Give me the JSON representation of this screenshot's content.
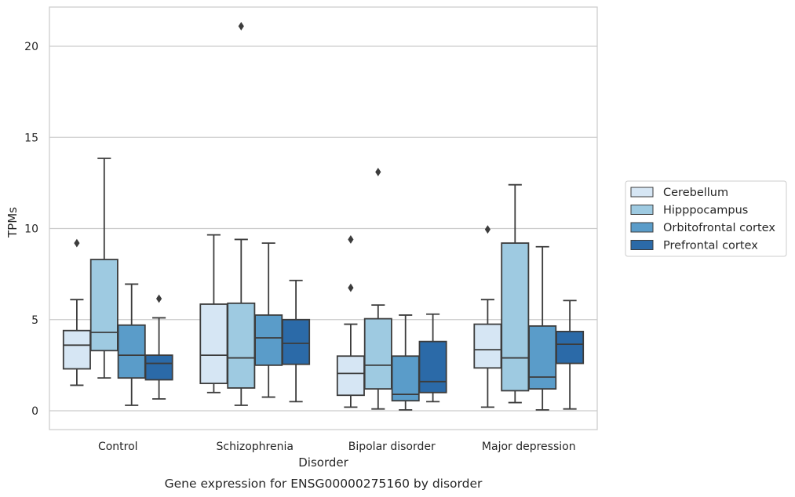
{
  "chart_data": {
    "type": "boxplot",
    "title": "",
    "caption": "Gene expression for ENSG00000275160 by disorder",
    "xlabel": "Disorder",
    "ylabel": "TPMs",
    "ylim": [
      -1.0,
      22.2
    ],
    "yticks": [
      0,
      5,
      10,
      15,
      20
    ],
    "categories": [
      "Control",
      "Schizophrenia",
      "Bipolar disorder",
      "Major depression"
    ],
    "grid": "horizontal",
    "legend_position": "right",
    "series": [
      {
        "name": "Cerebellum",
        "color": "#d6e6f4",
        "boxes": [
          {
            "whislo": 1.4,
            "q1": 2.3,
            "med": 3.6,
            "q3": 4.4,
            "whishi": 6.1,
            "fliers": [
              9.2
            ]
          },
          {
            "whislo": 1.0,
            "q1": 1.5,
            "med": 3.05,
            "q3": 5.85,
            "whishi": 9.65,
            "fliers": []
          },
          {
            "whislo": 0.2,
            "q1": 0.85,
            "med": 2.05,
            "q3": 3.0,
            "whishi": 4.75,
            "fliers": [
              6.75,
              9.4
            ]
          },
          {
            "whislo": 0.2,
            "q1": 2.35,
            "med": 3.35,
            "q3": 4.75,
            "whishi": 6.1,
            "fliers": [
              9.95
            ]
          }
        ]
      },
      {
        "name": "Hipppocampus",
        "color": "#9ecae1",
        "boxes": [
          {
            "whislo": 1.8,
            "q1": 3.3,
            "med": 4.3,
            "q3": 8.3,
            "whishi": 13.85,
            "fliers": []
          },
          {
            "whislo": 0.3,
            "q1": 1.25,
            "med": 2.9,
            "q3": 5.9,
            "whishi": 9.4,
            "fliers": [
              21.1
            ]
          },
          {
            "whislo": 0.1,
            "q1": 1.2,
            "med": 2.5,
            "q3": 5.05,
            "whishi": 5.8,
            "fliers": [
              13.1
            ]
          },
          {
            "whislo": 0.45,
            "q1": 1.1,
            "med": 2.9,
            "q3": 9.2,
            "whishi": 12.4,
            "fliers": []
          }
        ]
      },
      {
        "name": "Orbitofrontal cortex",
        "color": "#5a9cc9",
        "boxes": [
          {
            "whislo": 0.3,
            "q1": 1.8,
            "med": 3.05,
            "q3": 4.7,
            "whishi": 6.95,
            "fliers": []
          },
          {
            "whislo": 0.75,
            "q1": 2.5,
            "med": 4.0,
            "q3": 5.25,
            "whishi": 9.2,
            "fliers": []
          },
          {
            "whislo": 0.05,
            "q1": 0.55,
            "med": 0.9,
            "q3": 3.0,
            "whishi": 5.25,
            "fliers": []
          },
          {
            "whislo": 0.05,
            "q1": 1.2,
            "med": 1.85,
            "q3": 4.65,
            "whishi": 9.0,
            "fliers": []
          }
        ]
      },
      {
        "name": "Prefrontal cortex",
        "color": "#2b6aa8",
        "boxes": [
          {
            "whislo": 0.65,
            "q1": 1.7,
            "med": 2.6,
            "q3": 3.05,
            "whishi": 5.1,
            "fliers": [
              6.15
            ]
          },
          {
            "whislo": 0.5,
            "q1": 2.55,
            "med": 3.7,
            "q3": 5.0,
            "whishi": 7.15,
            "fliers": []
          },
          {
            "whislo": 0.5,
            "q1": 1.0,
            "med": 1.6,
            "q3": 3.8,
            "whishi": 5.3,
            "fliers": []
          },
          {
            "whislo": 0.1,
            "q1": 2.6,
            "med": 3.65,
            "q3": 4.35,
            "whishi": 6.05,
            "fliers": []
          }
        ]
      }
    ]
  }
}
